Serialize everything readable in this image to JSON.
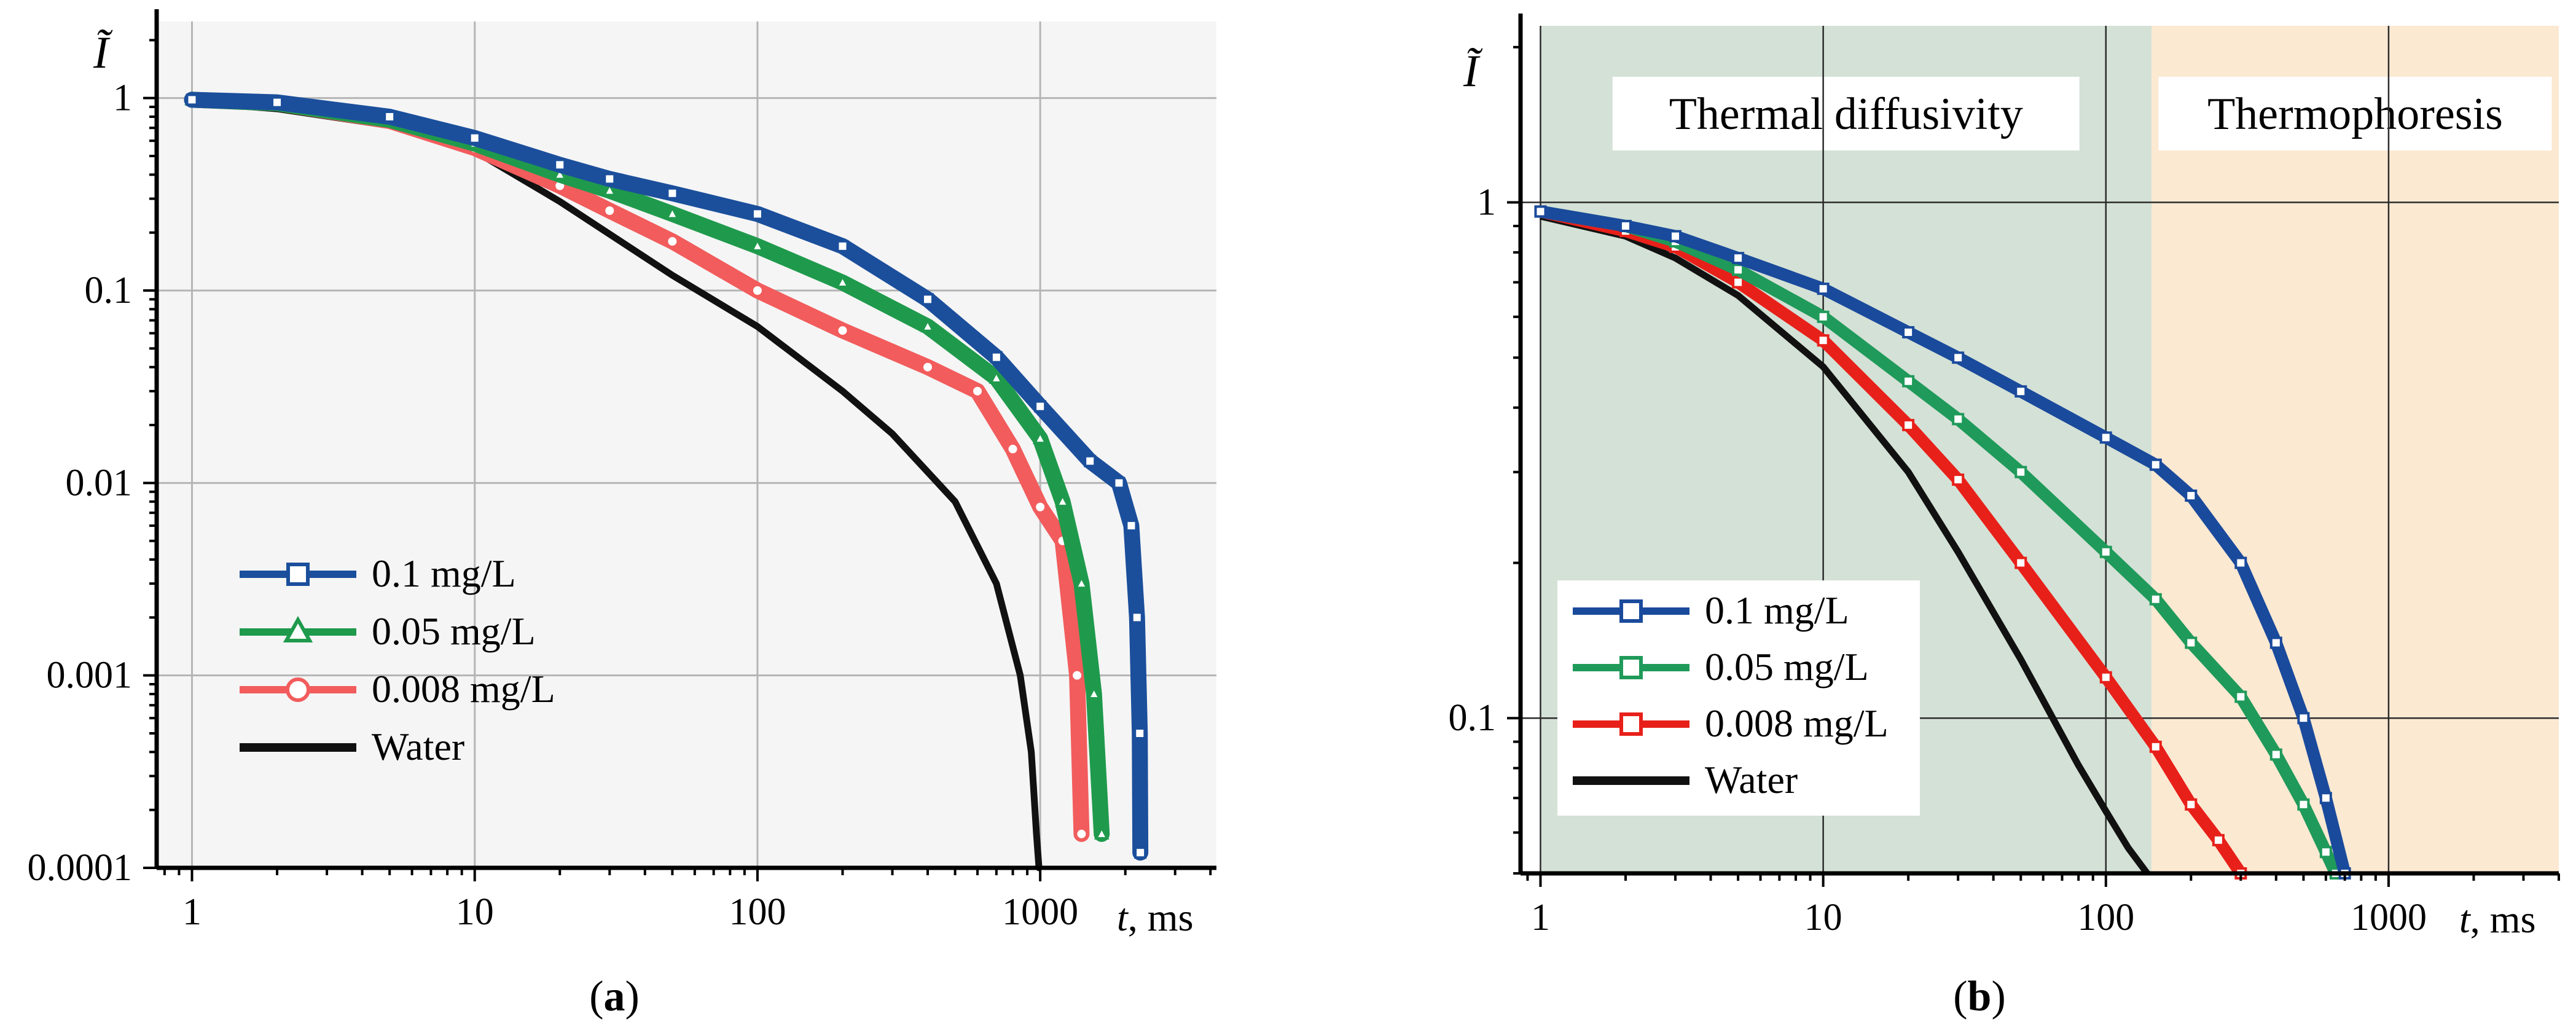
{
  "figure": {
    "panel_a_caption": {
      "open": "(",
      "letter": "a",
      "close": ")"
    },
    "panel_b_caption": {
      "open": "(",
      "letter": "b",
      "close": ")"
    }
  },
  "chart_data": [
    {
      "id": "a",
      "type": "line",
      "xscale": "log",
      "yscale": "log",
      "xlim": [
        0.75,
        4200
      ],
      "ylim": [
        0.0001,
        2.5
      ],
      "xlabel_var": "t",
      "xlabel_unit": ", ms",
      "ylabel": "Ĩ",
      "grid": true,
      "legend_position": "lower-left",
      "x_ticks": [
        "1",
        "10",
        "100",
        "1000"
      ],
      "x_tick_values": [
        1,
        10,
        100,
        1000
      ],
      "y_ticks": [
        "1",
        "0.1",
        "0.01",
        "0.001",
        "0.0001"
      ],
      "y_tick_values": [
        1,
        0.1,
        0.01,
        0.001,
        0.0001
      ],
      "series": [
        {
          "name": "0.1 mg/L",
          "color": "#1b4f9c",
          "marker": "square",
          "x": [
            1,
            2,
            5,
            10,
            20,
            30,
            50,
            100,
            200,
            400,
            700,
            1000,
            1500,
            1900,
            2100,
            2200,
            2250,
            2260
          ],
          "y": [
            0.98,
            0.95,
            0.8,
            0.62,
            0.45,
            0.38,
            0.32,
            0.25,
            0.17,
            0.09,
            0.045,
            0.025,
            0.013,
            0.01,
            0.006,
            0.002,
            0.0005,
            0.00012
          ]
        },
        {
          "name": "0.05 mg/L",
          "color": "#1f9a4c",
          "marker": "triangle",
          "x": [
            1,
            2,
            5,
            10,
            20,
            30,
            50,
            100,
            200,
            400,
            700,
            1000,
            1200,
            1400,
            1550,
            1650
          ],
          "y": [
            0.98,
            0.94,
            0.77,
            0.58,
            0.4,
            0.33,
            0.25,
            0.17,
            0.11,
            0.065,
            0.035,
            0.017,
            0.008,
            0.003,
            0.0008,
            0.00015
          ]
        },
        {
          "name": "0.008 mg/L",
          "color": "#f25c5c",
          "marker": "circle",
          "x": [
            1,
            2,
            5,
            10,
            20,
            30,
            50,
            100,
            200,
            400,
            600,
            800,
            1000,
            1200,
            1350,
            1400
          ],
          "y": [
            0.98,
            0.94,
            0.76,
            0.55,
            0.35,
            0.26,
            0.18,
            0.1,
            0.062,
            0.04,
            0.03,
            0.015,
            0.0075,
            0.005,
            0.001,
            0.00015
          ]
        },
        {
          "name": "Water",
          "color": "#111111",
          "marker": "none",
          "x": [
            1,
            2,
            5,
            10,
            20,
            50,
            100,
            200,
            300,
            500,
            700,
            850,
            930,
            970,
            990,
            1000
          ],
          "y": [
            0.95,
            0.88,
            0.72,
            0.53,
            0.29,
            0.12,
            0.065,
            0.03,
            0.018,
            0.008,
            0.003,
            0.001,
            0.0004,
            0.00015,
            0.0001,
            0.0001
          ]
        }
      ]
    },
    {
      "id": "b",
      "type": "line",
      "xscale": "log",
      "yscale": "log",
      "xlim": [
        0.85,
        4000
      ],
      "ylim": [
        0.05,
        2.2
      ],
      "xlabel_var": "t",
      "xlabel_unit": ", ms",
      "ylabel": "Ĩ",
      "grid": true,
      "legend_position": "lower-left",
      "x_ticks": [
        "1",
        "10",
        "100",
        "1000"
      ],
      "x_tick_values": [
        1,
        10,
        100,
        1000
      ],
      "y_ticks": [
        "1",
        "0.1"
      ],
      "y_tick_values": [
        1,
        0.1
      ],
      "regions": [
        {
          "label": "Thermal diffusivity",
          "from": 1,
          "to": 145,
          "color": "#d4e1d6"
        },
        {
          "label": "Thermophoresis",
          "from": 145,
          "to": 4000,
          "color": "#fce9d2"
        }
      ],
      "series": [
        {
          "name": "0.1 mg/L",
          "color": "#1a4a9c",
          "marker": "square",
          "x": [
            1,
            2,
            3,
            5,
            10,
            20,
            30,
            50,
            100,
            150,
            200,
            300,
            400,
            500,
            600,
            700
          ],
          "y": [
            0.96,
            0.9,
            0.86,
            0.78,
            0.68,
            0.56,
            0.5,
            0.43,
            0.35,
            0.31,
            0.27,
            0.2,
            0.14,
            0.1,
            0.07,
            0.05
          ]
        },
        {
          "name": "0.05 mg/L",
          "color": "#1f9a5a",
          "marker": "square",
          "x": [
            1,
            2,
            3,
            5,
            10,
            20,
            30,
            50,
            100,
            150,
            200,
            300,
            400,
            500,
            600,
            650
          ],
          "y": [
            0.96,
            0.9,
            0.84,
            0.74,
            0.6,
            0.45,
            0.38,
            0.3,
            0.21,
            0.17,
            0.14,
            0.11,
            0.085,
            0.068,
            0.055,
            0.05
          ]
        },
        {
          "name": "0.008 mg/L",
          "color": "#e8201a",
          "marker": "square",
          "x": [
            1,
            2,
            3,
            5,
            10,
            20,
            30,
            50,
            100,
            150,
            200,
            250,
            300
          ],
          "y": [
            0.96,
            0.88,
            0.82,
            0.7,
            0.54,
            0.37,
            0.29,
            0.2,
            0.12,
            0.088,
            0.068,
            0.058,
            0.05
          ]
        },
        {
          "name": "Water",
          "color": "#111111",
          "marker": "none",
          "x": [
            1,
            2,
            3,
            5,
            10,
            20,
            30,
            50,
            80,
            100,
            120,
            140
          ],
          "y": [
            0.94,
            0.86,
            0.78,
            0.66,
            0.48,
            0.3,
            0.21,
            0.13,
            0.081,
            0.066,
            0.056,
            0.05
          ]
        }
      ]
    }
  ]
}
